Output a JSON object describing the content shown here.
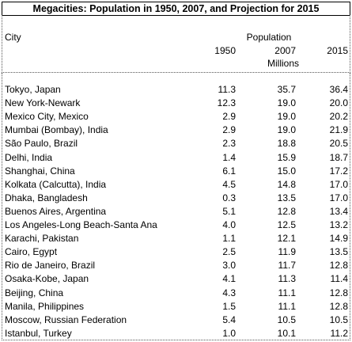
{
  "title": "Megacities: Population in 1950, 2007, and Projection for 2015",
  "header": {
    "city": "City",
    "population": "Population",
    "years": [
      "1950",
      "2007",
      "2015"
    ],
    "units": "Millions"
  },
  "table": {
    "rows": [
      [
        "Tokyo, Japan",
        "11.3",
        "35.7",
        "36.4"
      ],
      [
        "New York-Newark",
        "12.3",
        "19.0",
        "20.0"
      ],
      [
        "Mexico City, Mexico",
        "2.9",
        "19.0",
        "20.2"
      ],
      [
        "Mumbai (Bombay), India",
        "2.9",
        "19.0",
        "21.9"
      ],
      [
        "São Paulo, Brazil",
        "2.3",
        "18.8",
        "20.5"
      ],
      [
        "Delhi, India",
        "1.4",
        "15.9",
        "18.7"
      ],
      [
        "Shanghai, China",
        "6.1",
        "15.0",
        "17.2"
      ],
      [
        "Kolkata (Calcutta), India",
        "4.5",
        "14.8",
        "17.0"
      ],
      [
        "Dhaka, Bangladesh",
        "0.3",
        "13.5",
        "17.0"
      ],
      [
        "Buenos Aires, Argentina",
        "5.1",
        "12.8",
        "13.4"
      ],
      [
        "Los Angeles-Long Beach-Santa Ana",
        "4.0",
        "12.5",
        "13.2"
      ],
      [
        "Karachi, Pakistan",
        "1.1",
        "12.1",
        "14.9"
      ],
      [
        "Cairo, Egypt",
        "2.5",
        "11.9",
        "13.5"
      ],
      [
        "Rio de Janeiro, Brazil",
        "3.0",
        "11.7",
        "12.8"
      ],
      [
        "Osaka-Kobe, Japan",
        "4.1",
        "11.3",
        "11.4"
      ],
      [
        "Beijing, China",
        "4.3",
        "11.1",
        "12.8"
      ],
      [
        "Manila, Philippines",
        "1.5",
        "11.1",
        "12.8"
      ],
      [
        "Moscow, Russian Federation",
        "5.4",
        "10.5",
        "10.5"
      ],
      [
        "Istanbul, Turkey",
        "1.0",
        "10.1",
        "11.2"
      ]
    ]
  }
}
